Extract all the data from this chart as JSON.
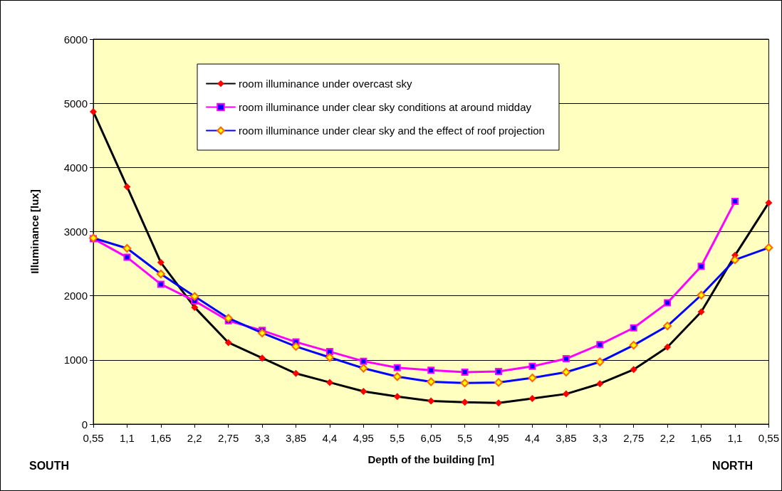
{
  "chart_data": {
    "type": "line",
    "xlabel": "Depth of the building [m]",
    "ylabel": "Illuminance [lux]",
    "categories": [
      "0,55",
      "1,1",
      "1,65",
      "2,2",
      "2,75",
      "3,3",
      "3,85",
      "4,4",
      "4,95",
      "5,5",
      "6,05",
      "5,5",
      "4,95",
      "4,4",
      "3,85",
      "3,3",
      "2,75",
      "2,2",
      "1,65",
      "1,1",
      "0,55"
    ],
    "series": [
      {
        "name": "room illuminance under overcast sky",
        "color": "#000000",
        "marker": "diamond",
        "values": [
          4870,
          3700,
          2520,
          1820,
          1270,
          1030,
          790,
          650,
          510,
          430,
          360,
          340,
          330,
          400,
          470,
          630,
          850,
          1200,
          1750,
          2630,
          3450
        ]
      },
      {
        "name": "room illuminance under clear sky conditions at around midday",
        "color": "#ff00ff",
        "marker": "square",
        "values": [
          2890,
          2600,
          2180,
          1920,
          1610,
          1460,
          1280,
          1130,
          980,
          880,
          840,
          810,
          820,
          900,
          1020,
          1240,
          1500,
          1890,
          2460,
          3470,
          null
        ]
      },
      {
        "name": "room illuminance under clear sky and the effect of roof projection",
        "color": "#0000ff",
        "marker": "diamond",
        "values": [
          2900,
          2740,
          2340,
          1990,
          1650,
          1420,
          1210,
          1040,
          870,
          740,
          660,
          640,
          650,
          720,
          810,
          970,
          1230,
          1530,
          2010,
          2560,
          2750
        ]
      }
    ],
    "ylim": [
      0,
      6000
    ],
    "yticks": [
      0,
      1000,
      2000,
      3000,
      4000,
      5000,
      6000
    ],
    "grid": "y",
    "legend": "top",
    "line_style": "solid",
    "annotations": [
      "SOUTH",
      "NORTH"
    ]
  }
}
